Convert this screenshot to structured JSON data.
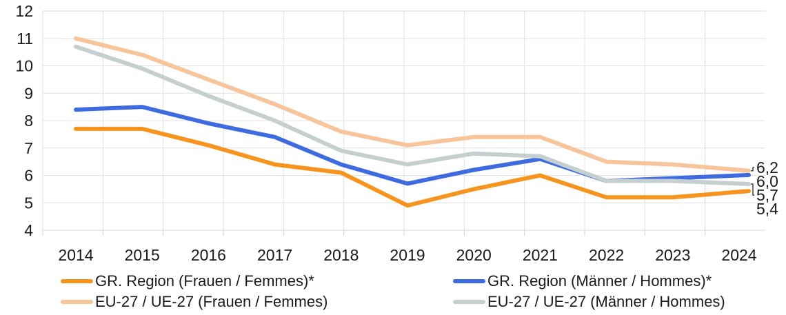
{
  "chart_data": {
    "type": "line",
    "title": "",
    "xlabel": "",
    "ylabel": "",
    "categories": [
      "2014",
      "2015",
      "2016",
      "2017",
      "2018",
      "2019",
      "2020",
      "2021",
      "2022",
      "2023",
      "2024"
    ],
    "series": [
      {
        "id": "gr-region-frauen",
        "name": "GR. Region (Frauen / Femmes)*",
        "color": "#F7941D",
        "values": [
          7.7,
          7.7,
          7.1,
          6.4,
          6.1,
          4.9,
          5.5,
          6.0,
          5.2,
          5.2,
          5.4
        ],
        "end_label": "5,4",
        "callout": false
      },
      {
        "id": "gr-region-maenner",
        "name": "GR. Region (Männer / Hommes)*",
        "color": "#3E6BE0",
        "values": [
          8.4,
          8.5,
          7.9,
          7.4,
          6.4,
          5.7,
          6.2,
          6.6,
          5.8,
          5.9,
          6.0
        ],
        "end_label": "6,0",
        "callout": false
      },
      {
        "id": "eu-27-frauen",
        "name": "EU-27 / UE-27 (Frauen / Femmes)",
        "color": "#F8C499",
        "values": [
          11.0,
          10.4,
          9.5,
          8.6,
          7.6,
          7.1,
          7.4,
          7.4,
          6.5,
          6.4,
          6.2
        ],
        "end_label": "6,2",
        "callout": true
      },
      {
        "id": "eu-27-maenner",
        "name": "EU-27 / UE-27 (Männer / Hommes)",
        "color": "#C5CFD0",
        "values": [
          10.7,
          9.9,
          8.9,
          8.0,
          6.9,
          6.4,
          6.8,
          6.7,
          5.8,
          5.8,
          5.7
        ],
        "end_label": "5,7",
        "callout": true
      }
    ],
    "ylim": [
      4,
      12
    ],
    "yticks": [
      12,
      11,
      10,
      9,
      8,
      7,
      6,
      5,
      4
    ],
    "grid": true,
    "legend_position": "bottom",
    "decimal_separator": ","
  },
  "colors": {
    "gridline": "#E2E2E2",
    "plot_border": "#D8D8D8",
    "tick": "#CFCFCF",
    "text": "#1A1A1A",
    "callout_line": "#444444",
    "background": "#FFFFFF"
  }
}
